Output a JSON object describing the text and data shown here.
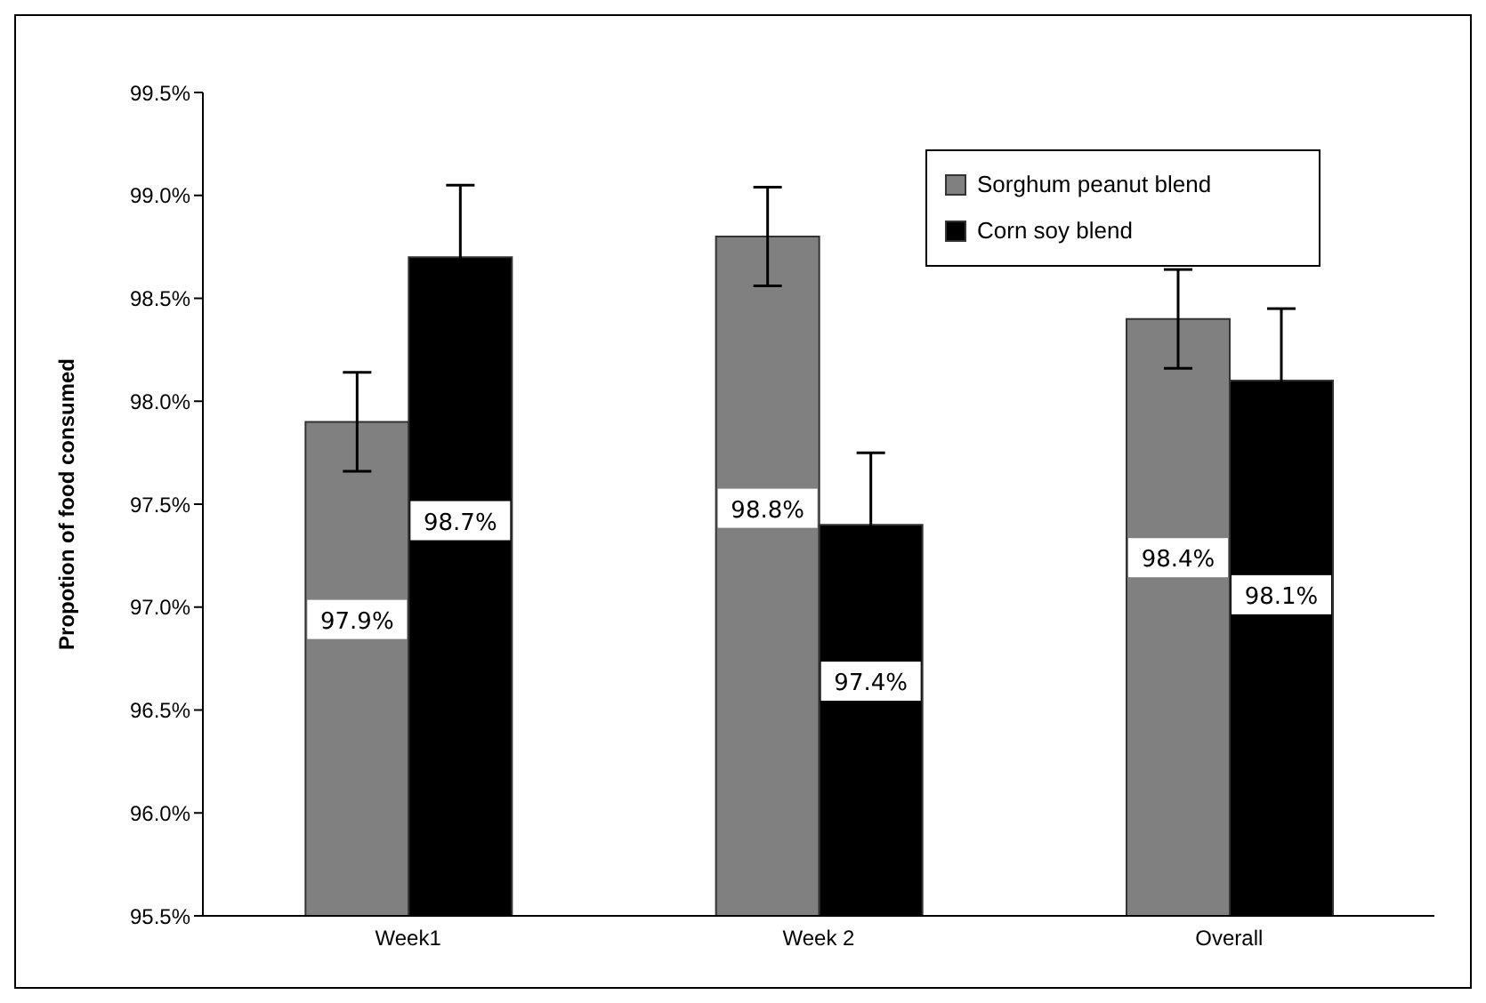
{
  "chart_data": {
    "type": "bar",
    "ylabel": "Propotion of food consumed",
    "categories": [
      "Week1",
      "Week 2",
      "Overall"
    ],
    "series": [
      {
        "name": "Sorghum peanut blend",
        "color": "#808080",
        "values": [
          97.9,
          98.8,
          98.4
        ],
        "errors": [
          0.24,
          0.24,
          0.24
        ],
        "value_labels": [
          "97.9%",
          "98.8%",
          "98.4%"
        ]
      },
      {
        "name": "Corn soy blend",
        "color": "#000000",
        "values": [
          98.7,
          97.4,
          98.1
        ],
        "errors": [
          0.35,
          0.35,
          0.35
        ],
        "value_labels": [
          "98.7%",
          "97.4%",
          "98.1%"
        ]
      }
    ],
    "ylim": [
      95.5,
      99.5
    ],
    "yticks": [
      {
        "value": 95.5,
        "label": "95.5%"
      },
      {
        "value": 96.0,
        "label": "96.0%"
      },
      {
        "value": 96.5,
        "label": "96.5%"
      },
      {
        "value": 97.0,
        "label": "97.0%"
      },
      {
        "value": 97.5,
        "label": "97.5%"
      },
      {
        "value": 98.0,
        "label": "98.0%"
      },
      {
        "value": 98.5,
        "label": "98.5%"
      },
      {
        "value": 99.0,
        "label": "99.0%"
      },
      {
        "value": 99.5,
        "label": "99.5%"
      }
    ],
    "grid": false,
    "legend": "top right"
  }
}
